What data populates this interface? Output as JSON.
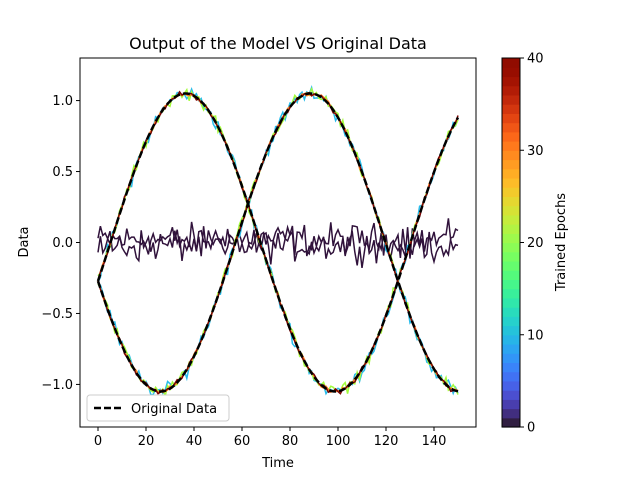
{
  "chart_data": {
    "type": "line",
    "title": "Output of the Model VS Original Data",
    "xlabel": "Time",
    "ylabel": "Data",
    "xlim": [
      -7.5,
      157.5
    ],
    "ylim": [
      -1.3,
      1.3
    ],
    "xticks": [
      0,
      20,
      40,
      60,
      80,
      100,
      120,
      140
    ],
    "yticks": [
      -1.0,
      -0.5,
      0.0,
      0.5,
      1.0
    ],
    "ytick_labels": [
      "−1.0",
      "−0.5",
      "0.0",
      "0.5",
      "1.0"
    ],
    "grid": false,
    "legend": {
      "position": "lower-left",
      "entries": [
        "Original Data"
      ]
    },
    "original_series": {
      "name": "Original Data",
      "style": "dashed",
      "color": "#000000",
      "curves": [
        {
          "description_key": "sine_phase_a",
          "amplitude": 1.05,
          "period": 125,
          "phase_deg": -15,
          "x_start": 0,
          "x_end": 150,
          "step": 1
        },
        {
          "description_key": "sine_phase_b",
          "amplitude": 1.05,
          "period": 125,
          "phase_deg": 195,
          "x_start": 0,
          "x_end": 150,
          "step": 1
        }
      ]
    },
    "model_outputs": [
      {
        "epoch": 0,
        "color": "#30123b",
        "noise": 0.0,
        "amplitude_scale": 0.0,
        "random_noise": 0.14
      },
      {
        "epoch": 12,
        "color": "#28bceb",
        "noise": 0.06,
        "amplitude_scale": 1.0
      },
      {
        "epoch": 22,
        "color": "#a4fc3c",
        "noise": 0.05,
        "amplitude_scale": 1.0
      },
      {
        "epoch": 32,
        "color": "#fb8022",
        "noise": 0.02,
        "amplitude_scale": 1.0
      },
      {
        "epoch": 40,
        "color": "#7a0403",
        "noise": 0.02,
        "amplitude_scale": 1.0
      }
    ],
    "colorbar": {
      "label": "Trained Epochs",
      "min": 0,
      "max": 40,
      "ticks": [
        0,
        10,
        20,
        30,
        40
      ],
      "colormap": "turbo",
      "levels": 40
    }
  }
}
